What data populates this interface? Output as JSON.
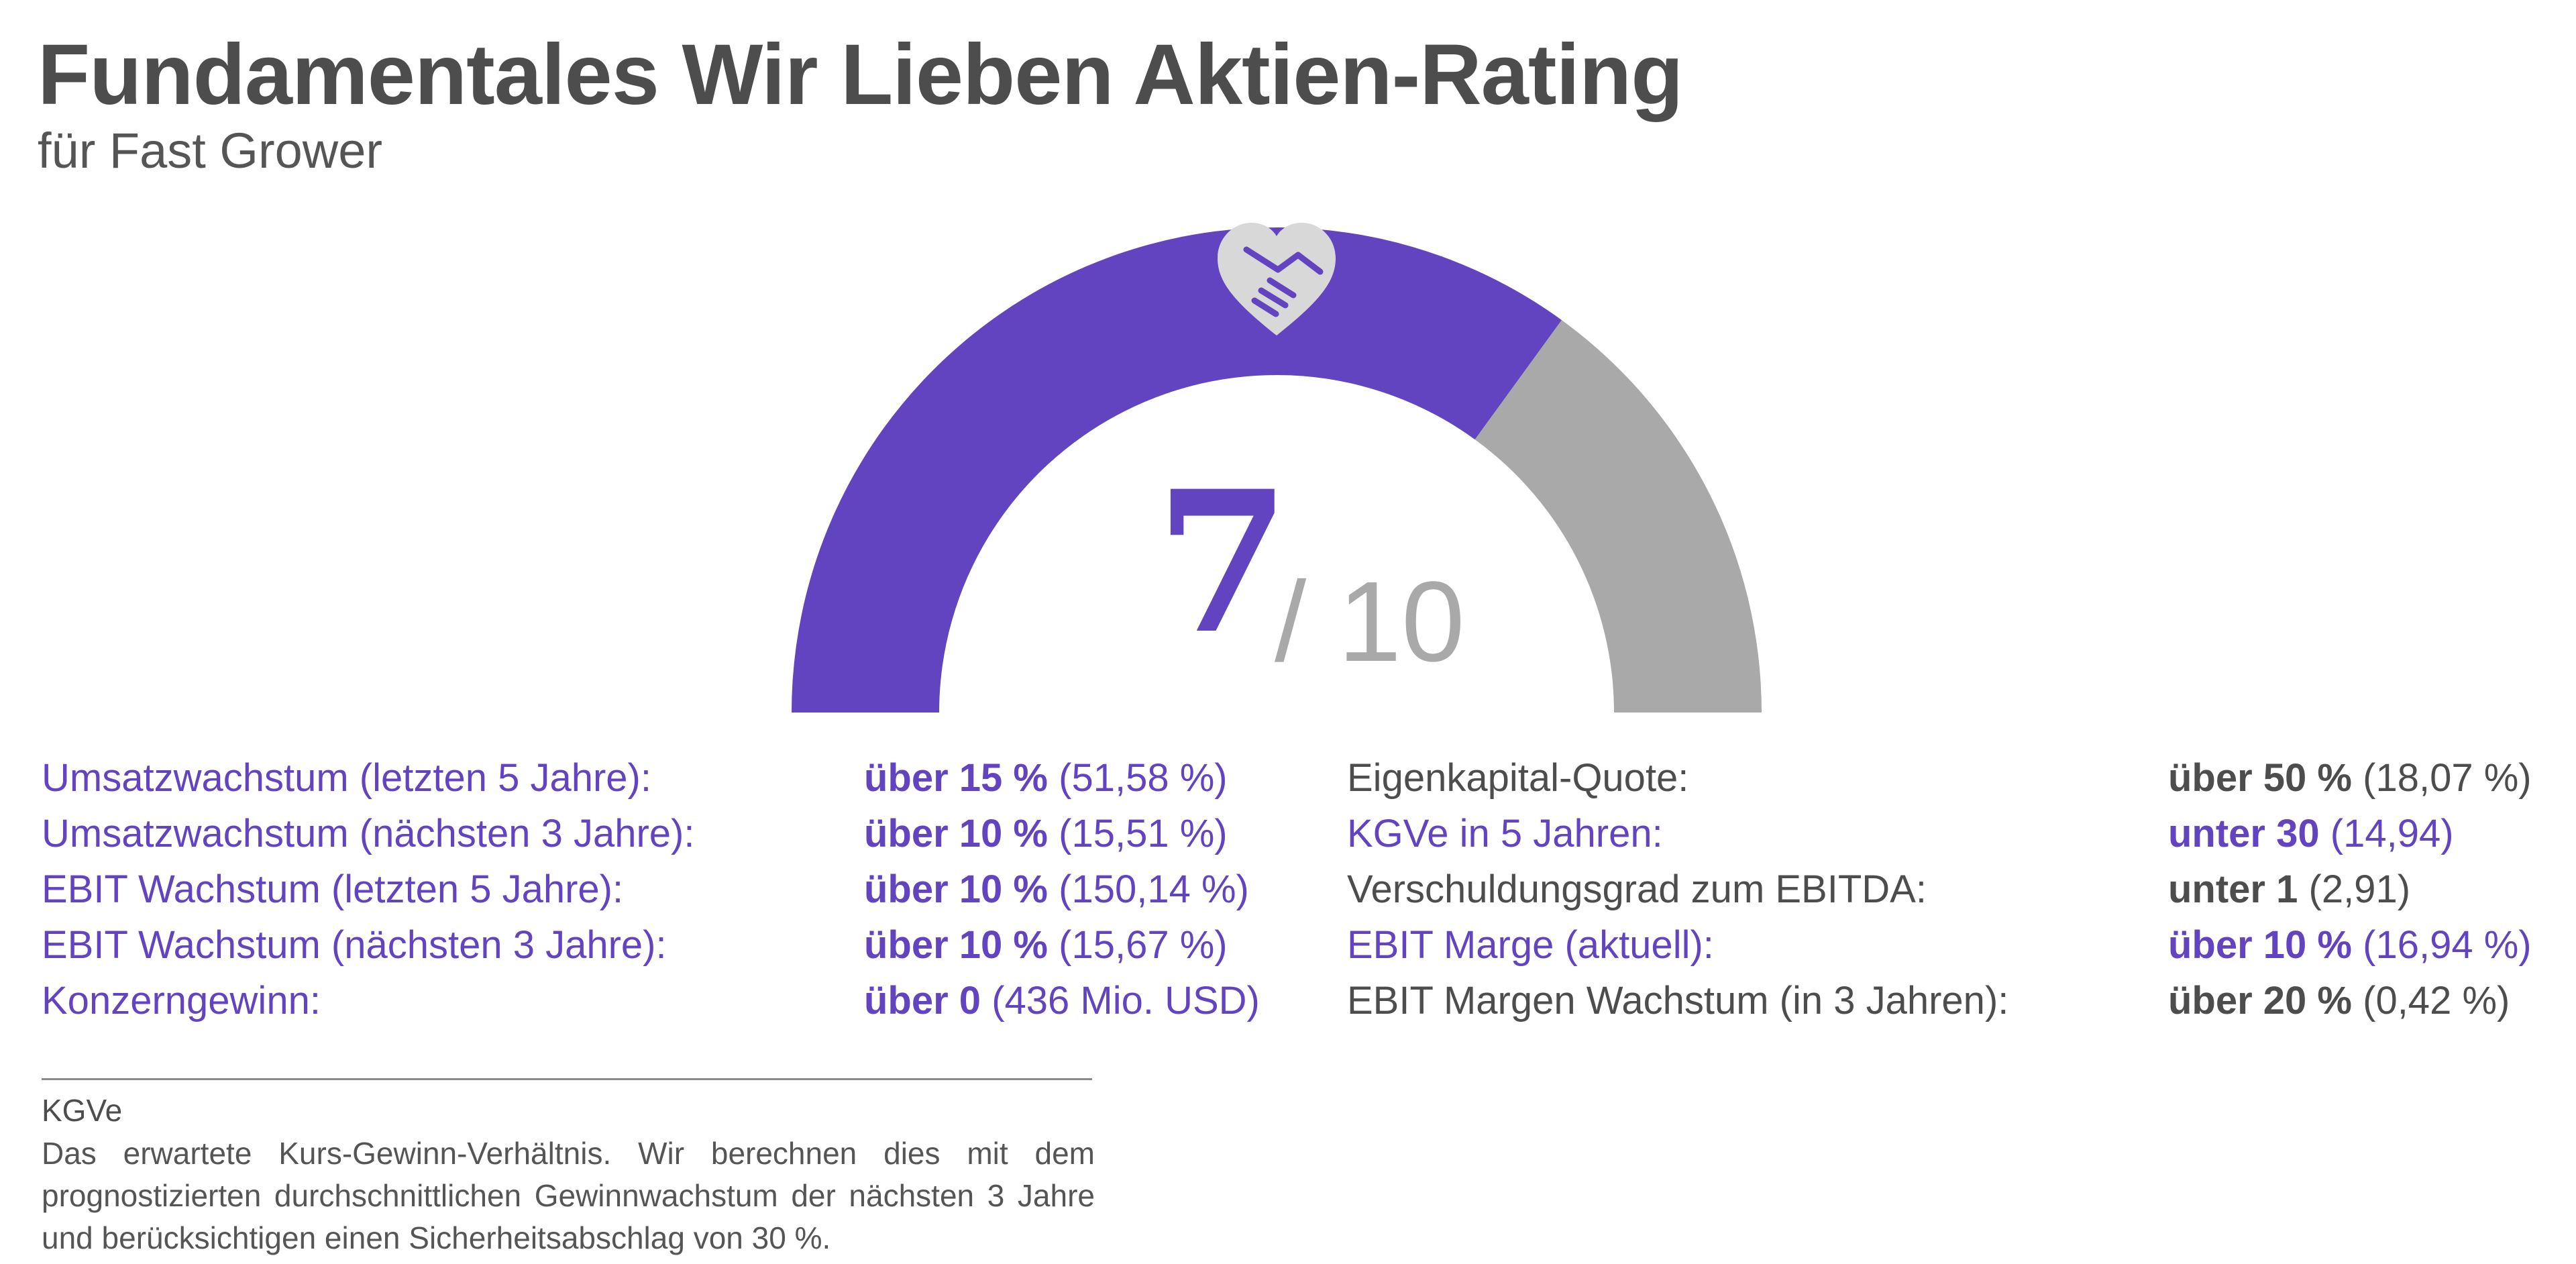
{
  "header": {
    "title": "Fundamentales Wir Lieben Aktien-Rating",
    "subtitle": "für Fast Grower"
  },
  "chart_data": {
    "type": "gauge",
    "score": 7,
    "max": 10,
    "score_text": "7",
    "max_text": "/ 10",
    "colors": {
      "filled": "#6244c0",
      "remaining": "#a9a9a9",
      "icon": "#d8d8d8"
    },
    "icon": "heart-handshake-icon"
  },
  "criteria": {
    "left": [
      {
        "label": "Umsatzwachstum (letzten 5 Jahre):",
        "threshold": "über 15 %",
        "value": "(51,58 %)",
        "passed": true
      },
      {
        "label": "Umsatzwachstum (nächsten 3 Jahre):",
        "threshold": "über 10 %",
        "value": "(15,51 %)",
        "passed": true
      },
      {
        "label": "EBIT Wachstum (letzten 5 Jahre):",
        "threshold": "über 10 %",
        "value": "(150,14 %)",
        "passed": true
      },
      {
        "label": "EBIT Wachstum (nächsten 3 Jahre):",
        "threshold": "über 10 %",
        "value": "(15,67 %)",
        "passed": true
      },
      {
        "label": "Konzerngewinn:",
        "threshold": "über 0",
        "value": "(436 Mio. USD)",
        "passed": true
      }
    ],
    "right": [
      {
        "label": "Eigenkapital-Quote:",
        "threshold": "über 50 %",
        "value": "(18,07 %)",
        "passed": false
      },
      {
        "label": "KGVe in 5 Jahren:",
        "threshold": "unter 30",
        "value": "(14,94)",
        "passed": true
      },
      {
        "label": "Verschuldungsgrad zum EBITDA:",
        "threshold": "unter 1",
        "value": "(2,91)",
        "passed": false
      },
      {
        "label": "EBIT Marge (aktuell):",
        "threshold": "über 10 %",
        "value": "(16,94 %)",
        "passed": true
      },
      {
        "label": "EBIT Margen Wachstum (in 3 Jahren):",
        "threshold": "über 20 %",
        "value": "(0,42 %)",
        "passed": false
      }
    ]
  },
  "footnote": {
    "term": "KGVe",
    "text": "Das erwartete Kurs-Gewinn-Verhältnis. Wir berechnen dies mit dem prognostizierten durchschnittlichen Gewinnwachstum der nächsten 3 Jahre und berücksichtigen einen Sicherheitsabschlag von 30 %."
  }
}
